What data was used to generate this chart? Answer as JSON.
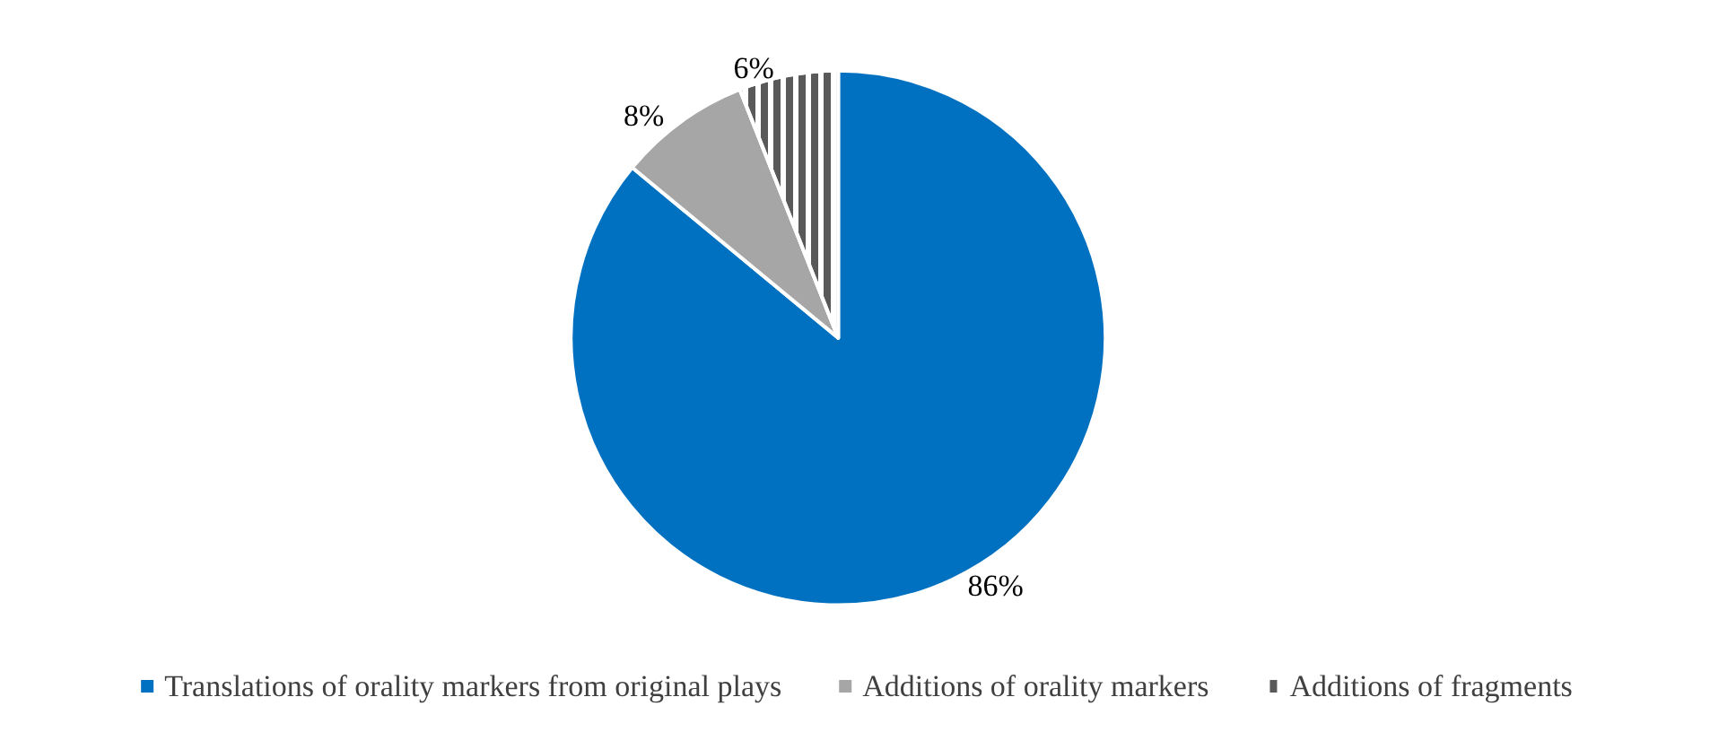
{
  "chart_data": {
    "type": "pie",
    "categories": [
      "Translations of orality markers from original plays",
      "Additions of orality markers",
      "Additions of fragments"
    ],
    "values": [
      86,
      8,
      6
    ],
    "colors": [
      "#0070c0",
      "#a6a6a6",
      "#595959"
    ],
    "value_labels": [
      "86%",
      "8%",
      "6%"
    ],
    "legend": "bottom"
  }
}
